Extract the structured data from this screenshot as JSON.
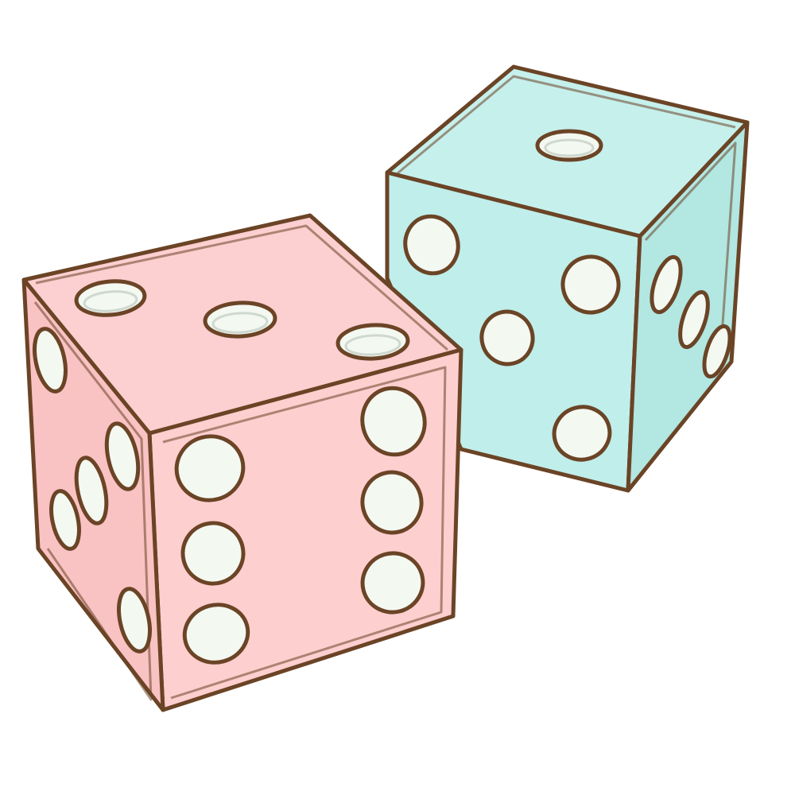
{
  "scene": {
    "background": "#ffffff",
    "outline_color": "#6b4426",
    "pip_fill": "#f3f8f1",
    "pip_shadow": "#cfd8cf",
    "dice": [
      {
        "name": "pink-die",
        "colors": {
          "top": "#fccfd0",
          "front": "#fdcfcf",
          "side": "#f9c2c3"
        },
        "pips": {
          "top": 3,
          "front": 6,
          "side": 5
        }
      },
      {
        "name": "teal-die",
        "colors": {
          "top": "#c6f0ec",
          "front": "#c0eeea",
          "side": "#b2e7e2"
        },
        "pips": {
          "top": 1,
          "front": 5,
          "side": 3
        }
      }
    ]
  }
}
